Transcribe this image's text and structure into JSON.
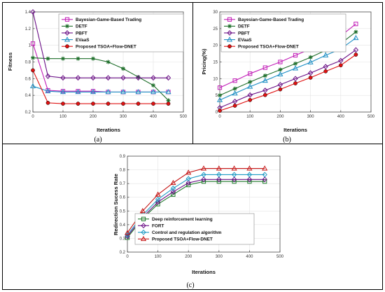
{
  "chart_data": [
    {
      "type": "line",
      "panel_label": "(a)",
      "xlabel": "Iterations",
      "ylabel": "Fitness",
      "xlim": [
        0,
        500
      ],
      "ylim": [
        0.2,
        1.4
      ],
      "xticks": [
        0,
        100,
        200,
        300,
        400,
        500
      ],
      "yticks": [
        0.2,
        0.4,
        0.6,
        0.8,
        1,
        1.2,
        1.4
      ],
      "grid": true,
      "legend_position": "top-right",
      "x": [
        0,
        50,
        100,
        150,
        200,
        250,
        300,
        350,
        400,
        450
      ],
      "series": [
        {
          "name": "Bayesian-Game-Based Trading",
          "color": "#c21eb7",
          "marker": "square",
          "values": [
            1.02,
            0.46,
            0.45,
            0.45,
            0.45,
            0.44,
            0.44,
            0.44,
            0.44,
            0.44
          ]
        },
        {
          "name": "DETF",
          "color": "#1e6e2a",
          "marker": "star",
          "values": [
            0.85,
            0.84,
            0.84,
            0.84,
            0.84,
            0.8,
            0.72,
            0.62,
            0.52,
            0.34
          ]
        },
        {
          "name": "PBFT",
          "color": "#6a0f86",
          "marker": "diamond",
          "values": [
            1.4,
            0.63,
            0.61,
            0.61,
            0.61,
            0.61,
            0.61,
            0.61,
            0.61,
            0.61
          ]
        },
        {
          "name": "EVaaS",
          "color": "#1e8fc4",
          "marker": "triangle",
          "values": [
            0.51,
            0.45,
            0.44,
            0.44,
            0.44,
            0.44,
            0.44,
            0.44,
            0.44,
            0.44
          ]
        },
        {
          "name": "Proposed TSOA+Flow-DNET",
          "color": "#e01010",
          "marker": "circle",
          "values": [
            0.7,
            0.31,
            0.3,
            0.3,
            0.3,
            0.3,
            0.3,
            0.3,
            0.3,
            0.3
          ]
        }
      ]
    },
    {
      "type": "line",
      "panel_label": "(b)",
      "xlabel": "Iterations",
      "ylabel": "Pricing(%)",
      "xlim": [
        0,
        500
      ],
      "ylim": [
        0,
        30
      ],
      "xticks": [
        0,
        100,
        200,
        300,
        400,
        500
      ],
      "yticks": [
        0,
        5,
        10,
        15,
        20,
        25,
        30
      ],
      "grid": true,
      "legend_position": "top-left",
      "x": [
        0,
        50,
        100,
        150,
        200,
        250,
        300,
        350,
        400,
        450
      ],
      "series": [
        {
          "name": "Bayesian-Game-Based Trading",
          "color": "#c21eb7",
          "marker": "square",
          "values": [
            7.3,
            9.4,
            11.5,
            13.3,
            15.0,
            17.0,
            18.9,
            20.8,
            22.8,
            26.4
          ]
        },
        {
          "name": "DETF",
          "color": "#1e6e2a",
          "marker": "star",
          "values": [
            5.0,
            7.0,
            9.0,
            10.9,
            12.7,
            14.5,
            16.4,
            18.5,
            20.5,
            24.0
          ]
        },
        {
          "name": "PBFT",
          "color": "#6a0f86",
          "marker": "diamond",
          "values": [
            1.3,
            3.2,
            5.1,
            6.5,
            8.2,
            10.0,
            11.7,
            13.6,
            15.4,
            18.6
          ]
        },
        {
          "name": "EVaaS",
          "color": "#1e8fc4",
          "marker": "triangle",
          "values": [
            3.6,
            5.6,
            7.6,
            9.4,
            11.3,
            13.1,
            14.9,
            17.0,
            18.9,
            22.2
          ]
        },
        {
          "name": "Proposed TSOA+Flow-DNET",
          "color": "#e01010",
          "marker": "circle",
          "values": [
            0.4,
            1.9,
            3.6,
            5.1,
            6.8,
            8.6,
            10.3,
            12.2,
            14.0,
            17.2
          ]
        }
      ]
    },
    {
      "type": "line",
      "panel_label": "(c)",
      "xlabel": "Iterations",
      "ylabel": "Redirection Sucess Rate",
      "xlim": [
        0,
        500
      ],
      "ylim": [
        0.2,
        0.9
      ],
      "xticks": [
        0,
        100,
        200,
        300,
        400,
        500
      ],
      "yticks": [
        0.2,
        0.3,
        0.4,
        0.5,
        0.6,
        0.7,
        0.8,
        0.9
      ],
      "grid": true,
      "legend_position": "bottom-left",
      "x": [
        0,
        50,
        100,
        150,
        200,
        250,
        300,
        350,
        400,
        450
      ],
      "series": [
        {
          "name": "Deep reinforcement learning",
          "color": "#1e7a2a",
          "marker": "square",
          "values": [
            0.305,
            0.445,
            0.55,
            0.62,
            0.69,
            0.715,
            0.715,
            0.715,
            0.715,
            0.715
          ]
        },
        {
          "name": "FORT",
          "color": "#6a0f86",
          "marker": "diamond",
          "values": [
            0.315,
            0.455,
            0.565,
            0.64,
            0.705,
            0.73,
            0.73,
            0.73,
            0.73,
            0.73
          ]
        },
        {
          "name": "Control and regulation algorithm",
          "color": "#1e9ac4",
          "marker": "diamond",
          "values": [
            0.325,
            0.47,
            0.585,
            0.665,
            0.735,
            0.765,
            0.765,
            0.765,
            0.765,
            0.765
          ]
        },
        {
          "name": "Proposed TSOA+Flow-DNET",
          "color": "#c41414",
          "marker": "triangle",
          "values": [
            0.34,
            0.5,
            0.62,
            0.705,
            0.78,
            0.81,
            0.81,
            0.81,
            0.81,
            0.81
          ]
        }
      ]
    }
  ]
}
